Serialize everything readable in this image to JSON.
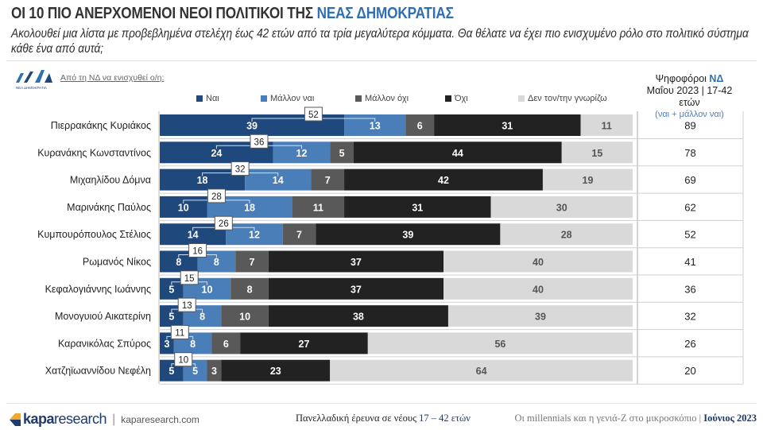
{
  "header": {
    "title_main": "ΟΙ 10 ΠΙΟ ΑΝΕΡΧΟΜΕΝΟΙ ΝΕΟΙ ΠΟΛΙΤΙΚΟΙ ΤΗΣ ",
    "title_accent": "ΝΕΑΣ ΔΗΜΟΚΡΑΤΙΑΣ",
    "subtitle": "Ακολουθεί μια λίστα με προβεβλημένα στελέχη έως 42 ετών από τα τρία μεγαλύτερα κόμματα. Θα θέλατε να έχει πιο ενισχυμένο ρόλο στο πολιτικό σύστημα κάθε ένα από αυτά;"
  },
  "logo_nd": {
    "caption": "ΝΕΑ ΔΗΜΟΚΡΑΤΙΑ"
  },
  "question": "Από τη ΝΔ να ενισχυθεί ο/η:",
  "voters_header": {
    "line1": "Ψηφοφόροι ",
    "line1_accent": "ΝΔ",
    "line2": "Μαΐου 2023 | 17-42 ετών",
    "line3": "(ναι + μάλλον ναι)"
  },
  "colors": {
    "nai": "#1f497d",
    "mallon_nai": "#4a7eb8",
    "mallon_oxi": "#595959",
    "oxi": "#222222",
    "den_gnorizo": "#d9d9d9",
    "accent": "#2f6fb3"
  },
  "chart_data": {
    "type": "bar",
    "orientation": "horizontal-stacked-100",
    "title": "ΟΙ 10 ΠΙΟ ΑΝΕΡΧΟΜΕΝΟΙ ΝΕΟΙ ΠΟΛΙΤΙΚΟΙ ΤΗΣ ΝΕΑΣ ΔΗΜΟΚΡΑΤΙΑΣ",
    "xlabel": "",
    "ylabel": "",
    "xlim": [
      0,
      100
    ],
    "grid": false,
    "legend_position": "top",
    "categories": [
      "Πιερρακάκης Κυριάκος",
      "Κυρανάκης Κωνσταντίνος",
      "Μιχαηλίδου Δόμνα",
      "Μαρινάκης Παύλος",
      "Κυμπουρόπουλος Στέλιος",
      "Ρωμανός Νίκος",
      "Κεφαλογιάννης Ιωάννης",
      "Μονογυιού Αικατερίνη",
      "Καρανικόλας Σπύρος",
      "Χατζηϊωαννίδου Νεφέλη"
    ],
    "series": [
      {
        "name": "Ναι",
        "values": [
          39,
          24,
          18,
          10,
          14,
          8,
          5,
          5,
          3,
          5
        ]
      },
      {
        "name": "Μάλλον ναι",
        "values": [
          13,
          12,
          14,
          18,
          12,
          8,
          10,
          8,
          8,
          5
        ]
      },
      {
        "name": "Μάλλον όχι",
        "values": [
          6,
          5,
          7,
          11,
          7,
          7,
          8,
          10,
          6,
          3
        ]
      },
      {
        "name": "Όχι",
        "values": [
          31,
          44,
          42,
          31,
          39,
          37,
          37,
          38,
          27,
          23
        ]
      },
      {
        "name": "Δεν τον/την γνωρίζω",
        "values": [
          11,
          15,
          19,
          30,
          28,
          40,
          40,
          39,
          56,
          64
        ]
      }
    ],
    "sum_labels_nai_plus_mallon_nai": [
      52,
      36,
      32,
      28,
      26,
      16,
      15,
      13,
      11,
      10
    ],
    "side_column": {
      "header": "Ψηφοφόροι ΝΔ Μαΐου 2023 | 17-42 ετών (ναι + μάλλον ναι)",
      "values": [
        89,
        78,
        69,
        62,
        52,
        41,
        36,
        32,
        26,
        20
      ]
    }
  },
  "footer": {
    "brand_bold": "kapa",
    "brand_light": "research",
    "url": "kaparesearch.com",
    "survey": "Πανελλαδική έρευνα σε νέους ",
    "survey_ages": "17 – 42 ετών",
    "series_title": "Οι millennials και η γενιά-Ζ στο μικροσκόπιο | ",
    "date": "Ιούνιος 2023"
  }
}
